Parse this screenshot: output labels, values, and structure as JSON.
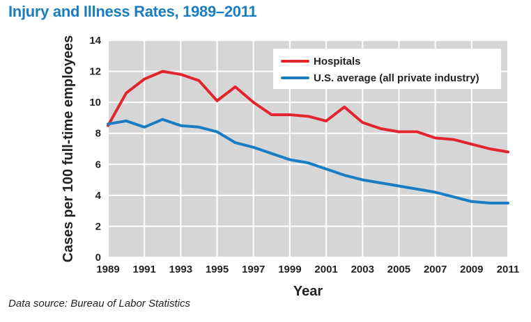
{
  "chart_data": {
    "type": "line",
    "title": "Injury and Illness Rates, 1989–2011",
    "xlabel": "Year",
    "ylabel": "Cases per 100 full-time employees",
    "source": "Data source: Bureau of Labor Statistics",
    "xlim": [
      1989,
      2011
    ],
    "ylim": [
      0,
      14
    ],
    "x_ticks": [
      1989,
      1991,
      1993,
      1995,
      1997,
      1999,
      2001,
      2003,
      2005,
      2007,
      2009,
      2011
    ],
    "y_ticks": [
      0,
      2,
      4,
      6,
      8,
      10,
      12,
      14
    ],
    "grid": true,
    "legend_position": "top-right",
    "x": [
      1989,
      1990,
      1991,
      1992,
      1993,
      1994,
      1995,
      1996,
      1997,
      1998,
      1999,
      2000,
      2001,
      2002,
      2003,
      2004,
      2005,
      2006,
      2007,
      2008,
      2009,
      2010,
      2011
    ],
    "series": [
      {
        "name": "Hospitals",
        "color": "#e2242c",
        "values": [
          8.5,
          10.6,
          11.5,
          12.0,
          11.8,
          11.4,
          10.1,
          11.0,
          10.0,
          9.2,
          9.2,
          9.1,
          8.8,
          9.7,
          8.7,
          8.3,
          8.1,
          8.1,
          7.7,
          7.6,
          7.3,
          7.0,
          6.8
        ]
      },
      {
        "name": "U.S. average (all private industry)",
        "color": "#1a7dc4",
        "values": [
          8.6,
          8.8,
          8.4,
          8.9,
          8.5,
          8.4,
          8.1,
          7.4,
          7.1,
          6.7,
          6.3,
          6.1,
          5.7,
          5.3,
          5.0,
          4.8,
          4.6,
          4.4,
          4.2,
          3.9,
          3.6,
          3.5,
          3.5
        ]
      }
    ]
  }
}
